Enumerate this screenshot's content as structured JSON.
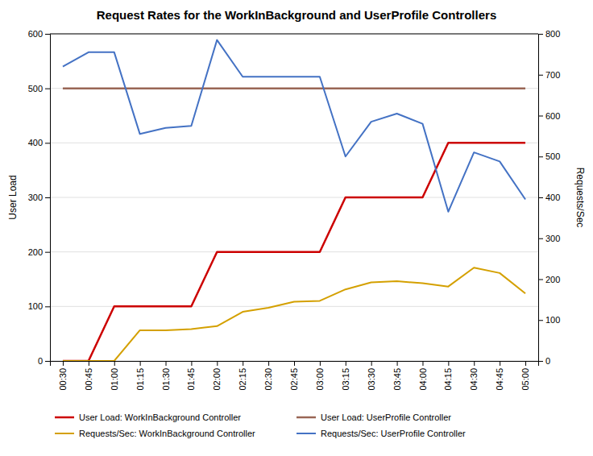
{
  "chart_data": {
    "type": "line",
    "title": "Request Rates for the WorkInBackground and UserProfile Controllers",
    "ylabel": "User Load",
    "y2label": "Requests/Sec",
    "categories": [
      "00:30",
      "00:45",
      "01:00",
      "01:15",
      "01:30",
      "01:45",
      "02:00",
      "02:15",
      "02:30",
      "02:45",
      "03:00",
      "03:15",
      "03:30",
      "03:45",
      "04:00",
      "04:15",
      "04:30",
      "04:45",
      "05:00"
    ],
    "series": [
      {
        "name": "User Load: WorkInBackground Controller",
        "color": "#CC0000",
        "axis": "y",
        "values": [
          0,
          0,
          100,
          100,
          100,
          100,
          200,
          200,
          200,
          200,
          200,
          300,
          300,
          300,
          300,
          400,
          400,
          400,
          400
        ]
      },
      {
        "name": "User Load: UserProfile Controller",
        "color": "#996655",
        "axis": "y",
        "values": [
          500,
          500,
          500,
          500,
          500,
          500,
          500,
          500,
          500,
          500,
          500,
          500,
          500,
          500,
          500,
          500,
          500,
          500,
          500
        ]
      },
      {
        "name": "Requests/Sec: WorkInBackground Controller",
        "color": "#D4A000",
        "axis": "y2",
        "values": [
          0,
          0,
          0,
          75,
          75,
          78,
          85,
          120,
          130,
          145,
          147,
          175,
          192,
          195,
          190,
          182,
          228,
          215,
          165
        ]
      },
      {
        "name": "Requests/Sec: UserProfile Controller",
        "color": "#4472C4",
        "axis": "y2",
        "values": [
          720,
          755,
          755,
          555,
          570,
          575,
          785,
          695,
          695,
          695,
          695,
          500,
          585,
          605,
          580,
          365,
          510,
          488,
          395
        ]
      }
    ],
    "ylim": [
      0,
      600
    ],
    "yticks": [
      0,
      100,
      200,
      300,
      400,
      500,
      600
    ],
    "y2lim": [
      0,
      800
    ],
    "y2ticks": [
      0,
      100,
      200,
      300,
      400,
      500,
      600,
      700,
      800
    ],
    "grid": true,
    "legend": "bottom"
  }
}
